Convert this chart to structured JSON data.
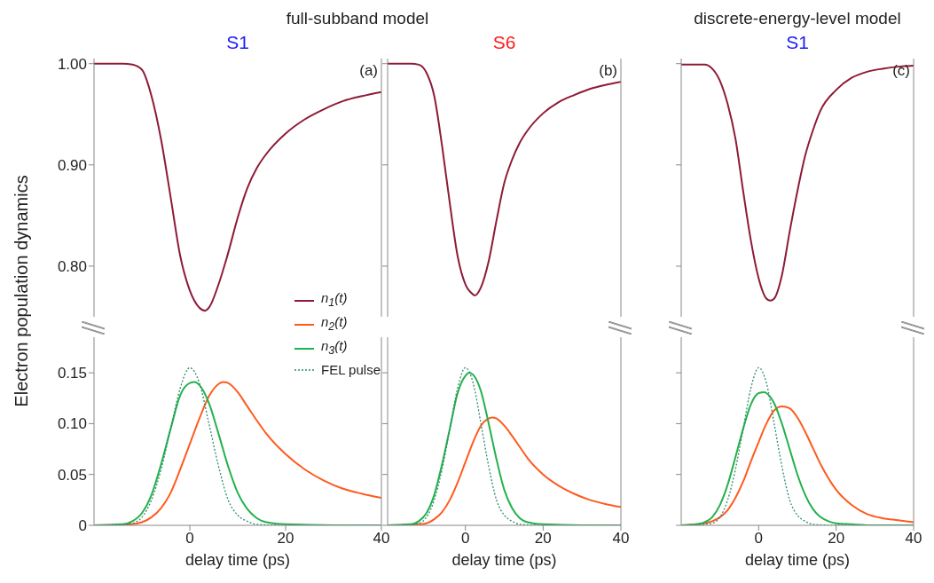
{
  "chart_data": [
    {
      "type": "line",
      "title": "full-subband model",
      "subtitle": "S1",
      "ylabel": "Electron population dynamics",
      "annotations": [
        "(a)"
      ],
      "xlim": [
        -20,
        40
      ],
      "ylim": [
        0.75,
        1.005
      ],
      "yticks": [
        {
          "value": 0.8,
          "label": "0.80"
        },
        {
          "value": 0.9,
          "label": "0.90"
        },
        {
          "value": 1.0,
          "label": "1.00"
        }
      ],
      "tick_labels": "y",
      "legend": "bottom right",
      "series": [
        {
          "name": "n$_{1}$(t)",
          "color": "#8e1b36",
          "x": [
            -20,
            -14,
            -12,
            -10,
            -8,
            -6,
            -4,
            -2,
            0,
            2,
            3.2,
            4,
            6,
            8,
            10,
            12,
            14,
            16,
            20,
            24,
            28,
            32,
            36,
            40
          ],
          "values": [
            1.0,
            1.0,
            0.999,
            0.994,
            0.968,
            0.925,
            0.868,
            0.81,
            0.776,
            0.759,
            0.756,
            0.759,
            0.782,
            0.813,
            0.848,
            0.877,
            0.897,
            0.911,
            0.931,
            0.945,
            0.955,
            0.963,
            0.968,
            0.972
          ]
        }
      ]
    },
    {
      "type": "line",
      "subtitle": "S6",
      "annotations": [
        "(b)"
      ],
      "xlim": [
        -20,
        40
      ],
      "ylim": [
        0.75,
        1.005
      ],
      "yticks": [
        {
          "value": 0.8,
          "label": null
        },
        {
          "value": 0.9,
          "label": null
        },
        {
          "value": 1.0,
          "label": null
        }
      ],
      "tick_labels": false,
      "series": [
        {
          "color": "#8e1b36",
          "x": [
            -20,
            -14,
            -12,
            -10,
            -8,
            -6,
            -4,
            -2,
            0,
            2,
            2.4,
            4,
            6,
            8,
            10,
            12,
            14,
            16,
            20,
            24,
            28,
            32,
            36,
            40
          ],
          "values": [
            1.0,
            1.0,
            0.999,
            0.991,
            0.968,
            0.919,
            0.862,
            0.81,
            0.782,
            0.772,
            0.771,
            0.779,
            0.805,
            0.845,
            0.882,
            0.905,
            0.922,
            0.934,
            0.951,
            0.962,
            0.969,
            0.975,
            0.979,
            0.982
          ]
        }
      ]
    },
    {
      "type": "line",
      "title": "discrete-energy-level model",
      "subtitle": "S1",
      "annotations": [
        "(c)"
      ],
      "xlim": [
        -20,
        40
      ],
      "ylim": [
        0.75,
        1.005
      ],
      "yticks": [
        {
          "value": 0.8,
          "label": null
        },
        {
          "value": 0.9,
          "label": null
        },
        {
          "value": 1.0,
          "label": null
        }
      ],
      "tick_labels": false,
      "series": [
        {
          "color": "#8e1b36",
          "x": [
            -20,
            -14,
            -12,
            -10,
            -8,
            -6,
            -4,
            -2,
            0,
            2,
            3,
            4,
            6,
            8,
            10,
            12,
            14,
            16,
            20,
            24,
            28,
            32,
            36,
            40
          ],
          "values": [
            0.999,
            0.999,
            0.995,
            0.983,
            0.96,
            0.926,
            0.874,
            0.825,
            0.788,
            0.768,
            0.766,
            0.768,
            0.791,
            0.834,
            0.874,
            0.909,
            0.934,
            0.954,
            0.974,
            0.986,
            0.992,
            0.995,
            0.997,
            0.998
          ]
        }
      ]
    },
    {
      "type": "line",
      "xlabel": "delay time (ps)",
      "xlim": [
        -20,
        40
      ],
      "xticks": [
        0,
        20,
        40
      ],
      "ylim": [
        0,
        0.185
      ],
      "yticks": [
        0,
        {
          "value": 0.05,
          "label": "0.05"
        },
        {
          "value": 0.1,
          "label": "0.10"
        },
        0.15
      ],
      "legend": "top right",
      "series": [
        {
          "name": "n$_{2}$(t)",
          "color": "#ff5a1f",
          "x": [
            -20,
            -12,
            -10,
            -8,
            -6,
            -4,
            -2,
            0,
            2,
            4,
            6,
            7,
            8,
            10,
            12,
            14,
            16,
            20,
            24,
            28,
            32,
            36,
            40
          ],
          "values": [
            0,
            0.001,
            0.003,
            0.008,
            0.017,
            0.032,
            0.055,
            0.08,
            0.105,
            0.127,
            0.139,
            0.141,
            0.14,
            0.131,
            0.117,
            0.103,
            0.09,
            0.07,
            0.055,
            0.044,
            0.036,
            0.031,
            0.027
          ]
        },
        {
          "name": "n$_{3}$(t)",
          "color": "#22b14c",
          "x": [
            -20,
            -14,
            -12,
            -10,
            -8,
            -6,
            -4,
            -2,
            0,
            1,
            2,
            4,
            6,
            8,
            10,
            12,
            14,
            16,
            20,
            30,
            40
          ],
          "values": [
            0,
            0.001,
            0.004,
            0.012,
            0.03,
            0.06,
            0.095,
            0.128,
            0.14,
            0.141,
            0.138,
            0.12,
            0.09,
            0.058,
            0.032,
            0.016,
            0.007,
            0.003,
            0.001,
            0,
            0
          ]
        },
        {
          "name": "FEL pulse",
          "color": "#2e8b6e",
          "line_style": "dotted",
          "x": [
            -20,
            -14,
            -12,
            -10,
            -8,
            -6,
            -4,
            -2,
            0,
            2,
            4,
            6,
            8,
            10,
            12,
            14,
            20,
            40
          ],
          "values": [
            0,
            0.001,
            0.002,
            0.008,
            0.025,
            0.055,
            0.095,
            0.135,
            0.155,
            0.14,
            0.1,
            0.058,
            0.025,
            0.01,
            0.004,
            0.001,
            0,
            0
          ]
        }
      ]
    },
    {
      "type": "line",
      "xlabel": "delay time (ps)",
      "xlim": [
        -20,
        40
      ],
      "xticks": [
        0,
        20,
        40
      ],
      "ylim": [
        0,
        0.185
      ],
      "yticks": [
        {
          "value": 0,
          "label": null
        },
        {
          "value": 0.05,
          "label": null
        },
        {
          "value": 0.1,
          "label": null
        },
        {
          "value": 0.15,
          "label": null
        }
      ],
      "tick_labels": "x",
      "series": [
        {
          "color": "#ff5a1f",
          "x": [
            -20,
            -12,
            -10,
            -8,
            -6,
            -4,
            -2,
            0,
            2,
            4,
            6,
            7,
            8,
            10,
            12,
            14,
            16,
            20,
            24,
            28,
            32,
            36,
            40
          ],
          "values": [
            0,
            0.001,
            0.002,
            0.006,
            0.013,
            0.025,
            0.042,
            0.062,
            0.082,
            0.098,
            0.105,
            0.106,
            0.105,
            0.098,
            0.088,
            0.077,
            0.066,
            0.05,
            0.039,
            0.031,
            0.025,
            0.021,
            0.018
          ]
        },
        {
          "color": "#22b14c",
          "x": [
            -20,
            -14,
            -12,
            -10,
            -8,
            -6,
            -4,
            -2,
            0,
            1,
            2,
            4,
            6,
            8,
            10,
            12,
            14,
            16,
            20,
            30,
            40
          ],
          "values": [
            0,
            0.001,
            0.004,
            0.012,
            0.03,
            0.06,
            0.095,
            0.13,
            0.147,
            0.15,
            0.148,
            0.132,
            0.1,
            0.065,
            0.035,
            0.017,
            0.007,
            0.003,
            0.001,
            0,
            0
          ]
        },
        {
          "color": "#2e8b6e",
          "line_style": "dotted",
          "x": [
            -20,
            -14,
            -12,
            -10,
            -8,
            -6,
            -4,
            -2,
            0,
            2,
            4,
            6,
            8,
            10,
            12,
            14,
            20,
            40
          ],
          "values": [
            0,
            0.001,
            0.002,
            0.008,
            0.025,
            0.055,
            0.095,
            0.135,
            0.155,
            0.14,
            0.1,
            0.058,
            0.025,
            0.01,
            0.004,
            0.001,
            0,
            0
          ]
        }
      ]
    },
    {
      "type": "line",
      "xlabel": "delay time (ps)",
      "xlim": [
        -20,
        40
      ],
      "xticks": [
        0,
        20,
        40
      ],
      "ylim": [
        0,
        0.185
      ],
      "yticks": [
        {
          "value": 0,
          "label": null
        },
        {
          "value": 0.05,
          "label": null
        },
        {
          "value": 0.1,
          "label": null
        },
        {
          "value": 0.15,
          "label": null
        }
      ],
      "tick_labels": "x",
      "series": [
        {
          "color": "#ff5a1f",
          "x": [
            -20,
            -16,
            -14,
            -12,
            -10,
            -8,
            -6,
            -4,
            -2,
            0,
            2,
            4,
            6,
            8,
            10,
            12,
            14,
            16,
            20,
            24,
            28,
            32,
            36,
            40
          ],
          "values": [
            0,
            0.001,
            0.002,
            0.004,
            0.008,
            0.015,
            0.027,
            0.043,
            0.063,
            0.082,
            0.1,
            0.113,
            0.117,
            0.115,
            0.106,
            0.092,
            0.076,
            0.06,
            0.035,
            0.02,
            0.011,
            0.007,
            0.005,
            0.003
          ]
        },
        {
          "color": "#22b14c",
          "x": [
            -20,
            -16,
            -14,
            -12,
            -10,
            -8,
            -6,
            -4,
            -2,
            0,
            1.5,
            2,
            4,
            6,
            8,
            10,
            12,
            14,
            16,
            18,
            20,
            24,
            30,
            40
          ],
          "values": [
            0,
            0.001,
            0.003,
            0.008,
            0.02,
            0.04,
            0.067,
            0.095,
            0.119,
            0.13,
            0.131,
            0.13,
            0.12,
            0.1,
            0.075,
            0.05,
            0.03,
            0.016,
            0.008,
            0.004,
            0.002,
            0.001,
            0,
            0
          ]
        },
        {
          "color": "#2e8b6e",
          "line_style": "dotted",
          "x": [
            -20,
            -14,
            -12,
            -10,
            -8,
            -6,
            -4,
            -2,
            0,
            2,
            4,
            6,
            8,
            10,
            12,
            14,
            20,
            40
          ],
          "values": [
            0,
            0.001,
            0.002,
            0.008,
            0.025,
            0.055,
            0.095,
            0.135,
            0.155,
            0.14,
            0.1,
            0.058,
            0.025,
            0.01,
            0.004,
            0.001,
            0,
            0
          ]
        }
      ]
    }
  ]
}
